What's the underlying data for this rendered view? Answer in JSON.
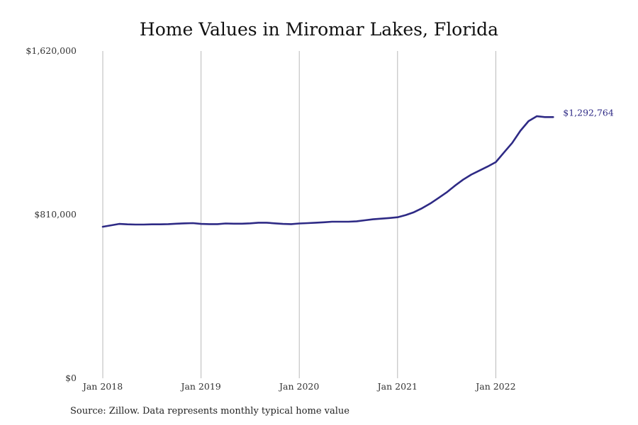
{
  "source_note": "Source: Zillow. Data represents monthly typical home value",
  "chart_data": {
    "type": "line",
    "title": "Home Values in Miromar Lakes, Florida",
    "xlabel": "",
    "ylabel": "",
    "ylim": [
      0,
      1620000
    ],
    "y_ticks": [
      0,
      810000,
      1620000
    ],
    "y_tick_labels": [
      "$0",
      "$810,000",
      "$1,620,000"
    ],
    "x_ticks": [
      "2018-01",
      "2019-01",
      "2020-01",
      "2021-01",
      "2022-01"
    ],
    "x_tick_labels": [
      "Jan 2018",
      "Jan 2019",
      "Jan 2020",
      "Jan 2021",
      "Jan 2022"
    ],
    "grid": "vertical",
    "series_color": "#2e2a85",
    "end_label": "$1,292,764",
    "series": [
      {
        "x": [
          "2018-01",
          "2018-02",
          "2018-03",
          "2018-04",
          "2018-05",
          "2018-06",
          "2018-07",
          "2018-08",
          "2018-09",
          "2018-10",
          "2018-11",
          "2018-12",
          "2019-01",
          "2019-02",
          "2019-03",
          "2019-04",
          "2019-05",
          "2019-06",
          "2019-07",
          "2019-08",
          "2019-09",
          "2019-10",
          "2019-11",
          "2019-12",
          "2020-01",
          "2020-02",
          "2020-03",
          "2020-04",
          "2020-05",
          "2020-06",
          "2020-07",
          "2020-08",
          "2020-09",
          "2020-10",
          "2020-11",
          "2020-12",
          "2021-01",
          "2021-02",
          "2021-03",
          "2021-04",
          "2021-05",
          "2021-06",
          "2021-07",
          "2021-08",
          "2021-09",
          "2021-10",
          "2021-11",
          "2021-12",
          "2022-01",
          "2022-02",
          "2022-03",
          "2022-04",
          "2022-05",
          "2022-06",
          "2022-07",
          "2022-08"
        ],
        "values": [
          750000,
          757000,
          764000,
          762000,
          761000,
          761000,
          762000,
          762000,
          763000,
          765000,
          767000,
          768000,
          764000,
          763000,
          763000,
          766000,
          765000,
          765000,
          767000,
          770000,
          770000,
          767000,
          764000,
          763000,
          766000,
          768000,
          770000,
          772000,
          775000,
          775000,
          775000,
          777000,
          782000,
          787000,
          790000,
          793000,
          797000,
          808000,
          822000,
          842000,
          865000,
          892000,
          920000,
          953000,
          983000,
          1008000,
          1028000,
          1048000,
          1070000,
          1118000,
          1165000,
          1225000,
          1273000,
          1297000,
          1293000,
          1292764
        ]
      }
    ]
  }
}
